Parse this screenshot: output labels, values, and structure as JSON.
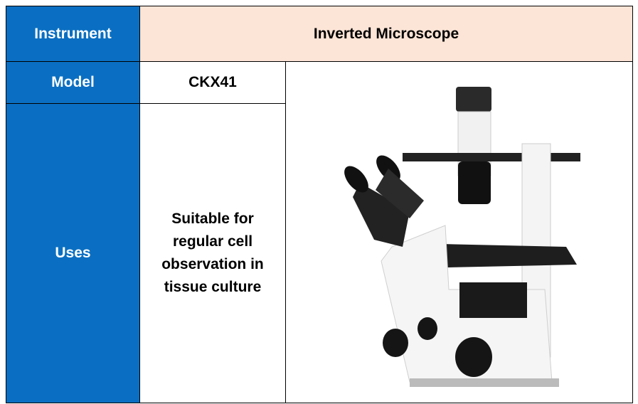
{
  "table": {
    "header": [
      "Instrument",
      "Inverted Microscope"
    ],
    "rows": [
      [
        "Model",
        "CKX41"
      ],
      [
        "Uses",
        "Suitable for regular cell observation in tissue culture"
      ]
    ]
  }
}
